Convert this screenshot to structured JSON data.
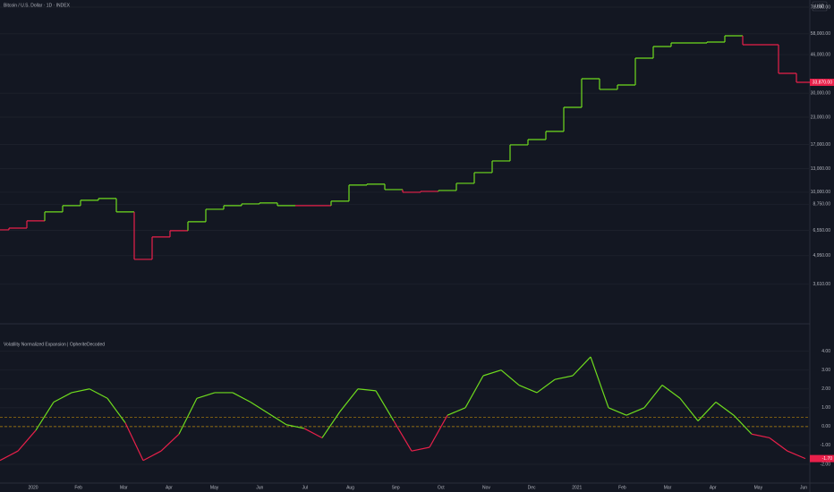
{
  "chart_data": [
    {
      "type": "line",
      "title": "Bitcoin / U.S. Dollar · 1D · INDEX",
      "currency": "USD",
      "scale": "log",
      "series": [
        {
          "name": "BTCUSD",
          "values": [
            6590,
            6720,
            7280,
            8040,
            8620,
            9150,
            9330,
            8040,
            4750,
            6090,
            6530,
            7210,
            8280,
            8620,
            8790,
            8880,
            8620,
            8620,
            8620,
            9060,
            10830,
            10940,
            10300,
            10000,
            10100,
            10200,
            11040,
            12440,
            14150,
            16920,
            17950,
            19640,
            25650,
            35250,
            31300,
            32880,
            44290,
            50380,
            52430,
            52430,
            52950,
            56740,
            51400,
            51400,
            37400,
            33870
          ]
        }
      ],
      "last_label": "33,870.00",
      "ylim": [
        2750,
        84400
      ],
      "yticks": [
        {
          "value": 78000,
          "label": "78,000.00"
        },
        {
          "value": 58000,
          "label": "58,000.00"
        },
        {
          "value": 46000,
          "label": "46,000.00"
        },
        {
          "value": 30000,
          "label": "30,000.00"
        },
        {
          "value": 23000,
          "label": "23,000.00"
        },
        {
          "value": 17000,
          "label": "17,000.00"
        },
        {
          "value": 13000,
          "label": "13,000.00"
        },
        {
          "value": 10000,
          "label": "10,000.00"
        },
        {
          "value": 8750,
          "label": "8,750.00"
        },
        {
          "value": 6550,
          "label": "6,550.00"
        },
        {
          "value": 4950,
          "label": "4,950.00"
        },
        {
          "value": 3610,
          "label": "3,610.00"
        }
      ]
    },
    {
      "type": "line",
      "title": "Volatility Normalized Expansion | OpheriteDecoded",
      "color_above": "#6fdc1e",
      "color_below": "#e8204a",
      "level_color": "#b8860b",
      "series": [
        {
          "name": "Expansion",
          "values": [
            -1.8,
            -1.3,
            -0.2,
            1.3,
            1.8,
            2.0,
            1.5,
            0.2,
            -1.8,
            -1.3,
            -0.4,
            1.5,
            1.8,
            1.8,
            1.3,
            0.7,
            0.1,
            -0.1,
            -0.6,
            0.8,
            2.0,
            1.9,
            0.3,
            -1.3,
            -1.1,
            0.6,
            1.0,
            2.7,
            3.0,
            2.2,
            1.8,
            2.5,
            2.7,
            3.7,
            1.0,
            0.6,
            1.0,
            2.2,
            1.5,
            0.3,
            1.3,
            0.6,
            -0.4,
            -0.6,
            -1.3,
            -1.7
          ]
        }
      ],
      "last_label": "-1.70",
      "levels": [
        0,
        0.5
      ],
      "ylim": [
        -3,
        4.6
      ],
      "yticks": [
        {
          "value": 4,
          "label": "4.00"
        },
        {
          "value": 3,
          "label": "3.00"
        },
        {
          "value": 2,
          "label": "2.00"
        },
        {
          "value": 1,
          "label": "1.00"
        },
        {
          "value": 0,
          "label": "0.00"
        },
        {
          "value": -1,
          "label": "-1.00"
        },
        {
          "value": -2,
          "label": "-2.00"
        }
      ],
      "xtick_labels": [
        "2020",
        "Feb",
        "Mar",
        "Apr",
        "May",
        "Jun",
        "Jul",
        "Aug",
        "Sep",
        "Oct",
        "Nov",
        "Dec",
        "2021",
        "Feb",
        "Mar",
        "Apr",
        "May",
        "Jun"
      ]
    }
  ]
}
